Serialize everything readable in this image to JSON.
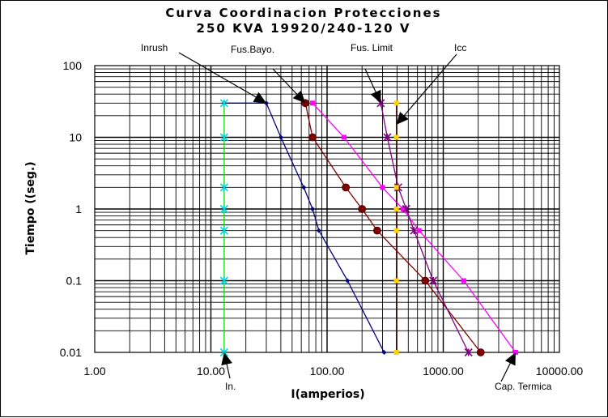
{
  "chart_data": {
    "type": "line",
    "title_line1": "Curva Coordinacion Protecciones",
    "title_line2": "250 KVA 19920/240-120 V",
    "xlabel": "I(amperios)",
    "ylabel": "Tiempo ((seg.)",
    "x_scale": "log",
    "y_scale": "log",
    "xlim": [
      1,
      10000
    ],
    "ylim": [
      0.01,
      100
    ],
    "x_ticks": [
      1,
      10,
      100,
      1000,
      10000
    ],
    "x_tick_labels": [
      "1.00",
      "10.00",
      "100.00",
      "1000.00",
      "10000.00"
    ],
    "y_ticks": [
      0.01,
      0.1,
      1,
      10,
      100
    ],
    "y_tick_labels": [
      "0.01",
      "0.1",
      "1",
      "10",
      "100"
    ],
    "grid": true,
    "series": [
      {
        "key": "inrush",
        "color": "#000080",
        "marker": "diamond",
        "points": [
          [
            13,
            30
          ],
          [
            30,
            30
          ],
          [
            40,
            10
          ],
          [
            63,
            2
          ],
          [
            75,
            1
          ],
          [
            85,
            0.5
          ],
          [
            150,
            0.1
          ],
          [
            310,
            0.01
          ]
        ]
      },
      {
        "key": "fus_bayo",
        "color": "#800000",
        "marker": "circle",
        "points": [
          [
            65,
            30
          ],
          [
            75,
            10
          ],
          [
            145,
            2
          ],
          [
            200,
            1
          ],
          [
            270,
            0.5
          ],
          [
            700,
            0.1
          ],
          [
            2100,
            0.01
          ]
        ]
      },
      {
        "key": "cap_termica",
        "color": "#ff00ff",
        "marker": "square",
        "points": [
          [
            75,
            30
          ],
          [
            140,
            10
          ],
          [
            300,
            2
          ],
          [
            450,
            1
          ],
          [
            620,
            0.5
          ],
          [
            1500,
            0.1
          ],
          [
            4200,
            0.01
          ]
        ]
      },
      {
        "key": "fus_limit",
        "color": "#800080",
        "marker": "star",
        "points": [
          [
            290,
            30
          ],
          [
            330,
            10
          ],
          [
            410,
            2
          ],
          [
            480,
            1
          ],
          [
            560,
            0.5
          ],
          [
            820,
            0.1
          ],
          [
            1650,
            0.01
          ]
        ]
      },
      {
        "key": "in",
        "color": "#00e000",
        "markerColor": "#00d8d8",
        "marker": "star",
        "points": [
          [
            13,
            30
          ],
          [
            13,
            10
          ],
          [
            13,
            2
          ],
          [
            13,
            1
          ],
          [
            13,
            0.5
          ],
          [
            13,
            0.1
          ],
          [
            13,
            0.01
          ]
        ]
      },
      {
        "key": "icc",
        "color": "#800000",
        "markerColor": "#ffd200",
        "marker": "square",
        "points": [
          [
            395,
            30
          ],
          [
            395,
            10
          ],
          [
            395,
            2
          ],
          [
            395,
            1
          ],
          [
            395,
            0.5
          ],
          [
            395,
            0.1
          ],
          [
            395,
            0.01
          ]
        ]
      }
    ],
    "annotations": [
      {
        "label": "Inrush",
        "points_to": [
          30,
          30
        ]
      },
      {
        "label": "Fus.Bayo.",
        "points_to": [
          65,
          30
        ]
      },
      {
        "label": "Fus. Limit",
        "points_to": [
          290,
          30
        ]
      },
      {
        "label": "Icc",
        "points_to": [
          395,
          15
        ]
      },
      {
        "label": "In.",
        "points_to": [
          13,
          0.01
        ]
      },
      {
        "label": "Cap. Termica",
        "points_to": [
          4200,
          0.01
        ]
      }
    ]
  }
}
